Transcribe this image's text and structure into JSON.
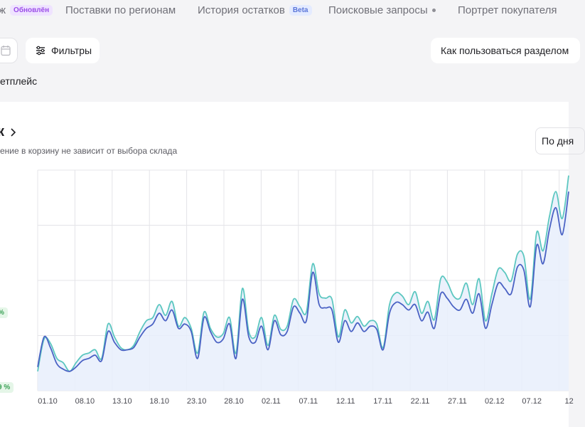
{
  "tabs": [
    {
      "label": "ж",
      "badge": "Обновлён"
    },
    {
      "label": "Поставки по регионам"
    },
    {
      "label": "История остатков",
      "badge": "Beta"
    },
    {
      "label": "Поисковые запросы"
    },
    {
      "label": "Портрет покупателя"
    }
  ],
  "toolbar": {
    "filters_label": "Фильтры",
    "help_label": "Как пользоваться разделом",
    "calendar_icon": "calendar-icon",
    "filter_icon": "sliders-icon"
  },
  "marketplace_label": "етплейс",
  "panel": {
    "title": "к",
    "subtitle": "ение в корзину не зависит от выбора склада",
    "period_label": "По дня",
    "pct_1": "%",
    "pct_2": "9 %"
  },
  "colors": {
    "series_teal": "#5cc7c0",
    "series_blue": "#4a62c4",
    "fill": "#e8eefb",
    "grid": "#e4e4e8"
  },
  "chart_data": {
    "type": "line",
    "x_ticks": [
      "01.10",
      "08.10",
      "13.10",
      "18.10",
      "23.10",
      "28.10",
      "02.11",
      "07.11",
      "12.11",
      "17.11",
      "22.11",
      "27.11",
      "02.12",
      "07.12",
      "12"
    ],
    "series": [
      {
        "values": [
          18,
          48,
          44,
          30,
          26,
          18,
          26,
          33,
          35,
          38,
          30,
          62,
          50,
          40,
          38,
          42,
          55,
          65,
          68,
          80,
          70,
          83,
          60,
          68,
          58,
          35,
          73,
          58,
          50,
          53,
          68,
          35,
          95,
          55,
          50,
          68,
          42,
          70,
          57,
          60,
          85,
          78,
          73,
          118,
          90,
          86,
          85,
          50,
          75,
          63,
          69,
          60,
          65,
          62,
          40,
          80,
          91,
          88,
          80,
          92,
          72,
          83,
          66,
          104,
          101,
          88,
          86,
          100,
          80,
          104,
          65,
          90,
          113,
          110,
          102,
          127,
          125,
          85,
          147,
          130,
          162,
          185,
          160,
          200
        ]
      },
      {
        "values": [
          22,
          50,
          40,
          25,
          20,
          18,
          22,
          28,
          30,
          33,
          28,
          55,
          45,
          38,
          38,
          40,
          50,
          58,
          62,
          72,
          65,
          75,
          58,
          62,
          55,
          30,
          68,
          55,
          45,
          48,
          62,
          30,
          85,
          50,
          45,
          60,
          38,
          65,
          52,
          55,
          78,
          72,
          65,
          110,
          80,
          77,
          75,
          45,
          65,
          55,
          63,
          55,
          60,
          57,
          38,
          72,
          82,
          80,
          75,
          80,
          65,
          73,
          58,
          90,
          86,
          78,
          75,
          85,
          72,
          90,
          58,
          80,
          100,
          95,
          90,
          115,
          112,
          78,
          135,
          118,
          150,
          170,
          145,
          185
        ]
      }
    ]
  }
}
